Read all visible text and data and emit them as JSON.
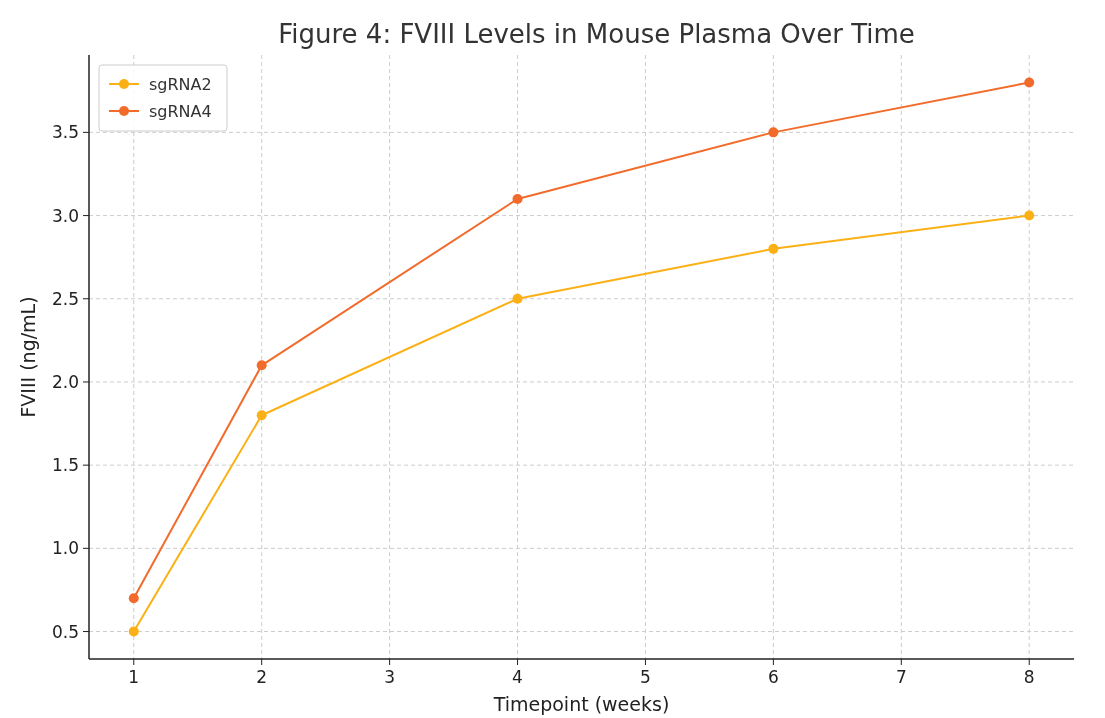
{
  "chart_data": {
    "type": "line",
    "title": "Figure 4: FVIII Levels in Mouse Plasma Over Time",
    "xlabel": "Timepoint (weeks)",
    "ylabel": "FVIII (ng/mL)",
    "x": [
      1,
      2,
      4,
      6,
      8
    ],
    "series": [
      {
        "name": "sgRNA2",
        "color": "#fbb016",
        "values": [
          0.5,
          1.8,
          2.5,
          2.8,
          3.0
        ]
      },
      {
        "name": "sgRNA4",
        "color": "#f26b2a",
        "values": [
          0.7,
          2.1,
          3.1,
          3.5,
          3.8
        ]
      }
    ],
    "xlim": [
      0.65,
      8.35
    ],
    "xticks": [
      1,
      2,
      3,
      4,
      5,
      6,
      7,
      8
    ],
    "ylim": [
      0.335,
      3.965
    ],
    "yticks": [
      {
        "value": 0.5,
        "label": "0.5"
      },
      {
        "value": 1.0,
        "label": "1.0"
      },
      {
        "value": 1.5,
        "label": "1.5"
      },
      {
        "value": 2.0,
        "label": "2.0"
      },
      {
        "value": 2.5,
        "label": "2.5"
      },
      {
        "value": 3.0,
        "label": "3.0"
      },
      {
        "value": 3.5,
        "label": "3.5"
      }
    ],
    "grid": true,
    "legend": "top left",
    "marker": "circle",
    "line_style": "solid"
  }
}
